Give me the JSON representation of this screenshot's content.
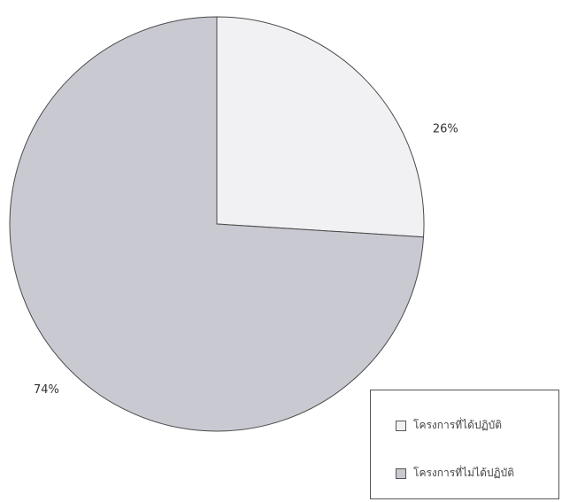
{
  "chart_data": {
    "type": "pie",
    "slices": [
      {
        "label": "โครงการที่ได้ปฏิบัติ",
        "value": 26,
        "value_label": "26%",
        "color": "#f1f1f3"
      },
      {
        "label": "โครงการที่ไม่ได้ปฏิบัติ",
        "value": 74,
        "value_label": "74%",
        "color": "#c9c9d2"
      }
    ],
    "start_angle": "12 o'clock",
    "direction": "clockwise",
    "legend_position": "bottom-right"
  },
  "legend": {
    "item1": "โครงการที่ได้ปฏิบัติ",
    "item2": "โครงการที่ไม่ได้ปฏิบัติ"
  }
}
